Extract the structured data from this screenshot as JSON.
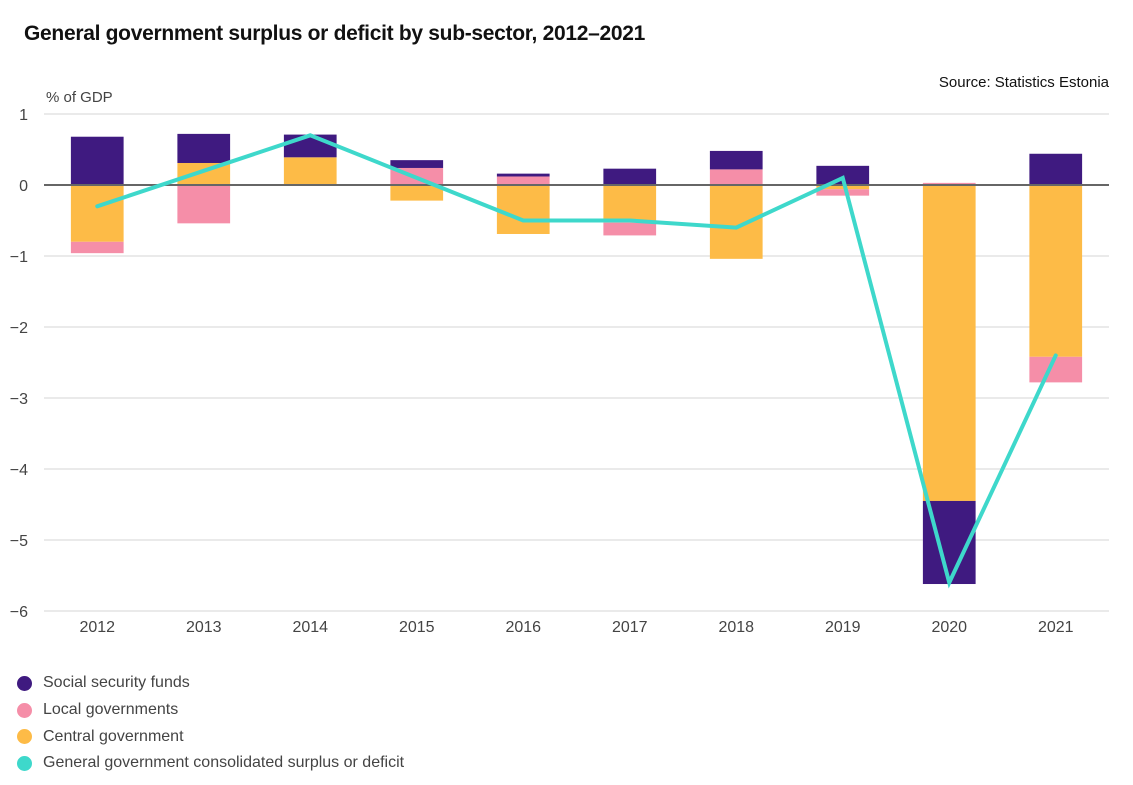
{
  "title": "General government surplus or deficit by sub-sector, 2012–2021",
  "source": "Source: Statistics Estonia",
  "chart_data": {
    "type": "bar",
    "stacked": true,
    "title": "General government surplus or deficit by sub-sector, 2012–2021",
    "ylabel": "% of GDP",
    "xlabel": "",
    "ylim": [
      -6,
      1
    ],
    "yticks": [
      1,
      0,
      -1,
      -2,
      -3,
      -4,
      -5,
      -6
    ],
    "ytick_labels": [
      "1",
      "0",
      "−1",
      "−2",
      "−3",
      "−4",
      "−5",
      "−6"
    ],
    "grid": true,
    "legend_position": "bottom-left",
    "categories": [
      "2012",
      "2013",
      "2014",
      "2015",
      "2016",
      "2017",
      "2018",
      "2019",
      "2020",
      "2021"
    ],
    "series": [
      {
        "name": "Central government",
        "kind": "bar",
        "color": "#FDBB47",
        "values": [
          -0.8,
          0.31,
          0.39,
          -0.22,
          -0.69,
          -0.53,
          -1.04,
          -0.06,
          -4.45,
          -2.42
        ]
      },
      {
        "name": "Local governments",
        "kind": "bar",
        "color": "#F58EA8",
        "values": [
          -0.16,
          -0.54,
          0.0,
          0.24,
          0.12,
          -0.18,
          0.22,
          -0.09,
          0.03,
          -0.36
        ]
      },
      {
        "name": "Social security funds",
        "kind": "bar",
        "color": "#3F1A80",
        "values": [
          0.68,
          0.41,
          0.32,
          0.11,
          0.04,
          0.23,
          0.26,
          0.27,
          -1.17,
          0.44
        ]
      },
      {
        "name": "General government consolidated surplus or deficit",
        "kind": "line",
        "color": "#3ED8CB",
        "values": [
          -0.3,
          0.2,
          0.7,
          0.1,
          -0.5,
          -0.5,
          -0.6,
          0.1,
          -5.6,
          -2.4
        ]
      }
    ]
  },
  "legend": [
    {
      "label": "Social security funds",
      "color": "#3F1A80"
    },
    {
      "label": "Local governments",
      "color": "#F58EA8"
    },
    {
      "label": "Central government",
      "color": "#FDBB47"
    },
    {
      "label": "General government consolidated surplus or deficit",
      "color": "#3ED8CB"
    }
  ]
}
